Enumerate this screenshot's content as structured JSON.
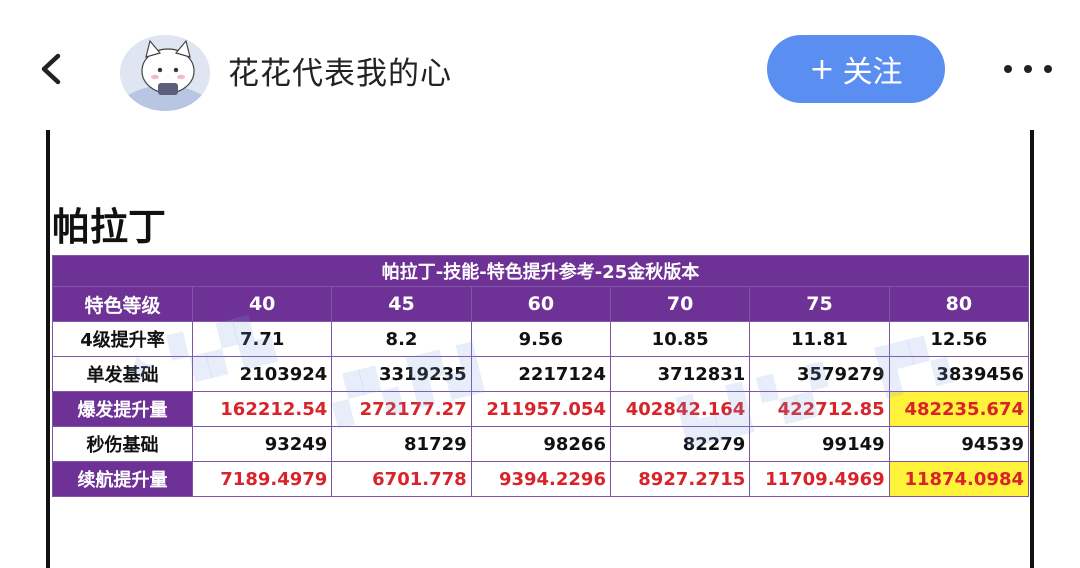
{
  "header": {
    "username": "花花代表我的心",
    "follow_label": "关注",
    "follow_plus": "+",
    "accent": "#5b8ef1"
  },
  "post": {
    "heading": "帕拉丁",
    "table": {
      "title": "帕拉丁-技能-特色提升参考-25金秋版本",
      "row_header": "特色等级",
      "levels": [
        "40",
        "45",
        "60",
        "70",
        "75",
        "80"
      ],
      "rows": [
        {
          "label": "4级提升率",
          "values": [
            "7.71",
            "8.2",
            "9.56",
            "10.85",
            "11.81",
            "12.56"
          ],
          "highlight": false,
          "red": false
        },
        {
          "label": "单发基础",
          "values": [
            "2103924",
            "3319235",
            "2217124",
            "3712831",
            "3579279",
            "3839456"
          ],
          "highlight": false,
          "red": false
        },
        {
          "label": "爆发提升量",
          "values": [
            "162212.54",
            "272177.27",
            "211957.054",
            "402842.164",
            "422712.85",
            "482235.674"
          ],
          "highlight": true,
          "red": true
        },
        {
          "label": "秒伤基础",
          "values": [
            "93249",
            "81729",
            "98266",
            "82279",
            "99149",
            "94539"
          ],
          "highlight": false,
          "red": false
        },
        {
          "label": "续航提升量",
          "values": [
            "7189.4979",
            "6701.778",
            "9394.2296",
            "8927.2715",
            "11709.4969",
            "11874.0984"
          ],
          "highlight": true,
          "red": true
        }
      ],
      "colors": {
        "header_purple": "#6e3297",
        "value_red": "#d8232a",
        "best_yellow": "#fff23a"
      }
    }
  }
}
